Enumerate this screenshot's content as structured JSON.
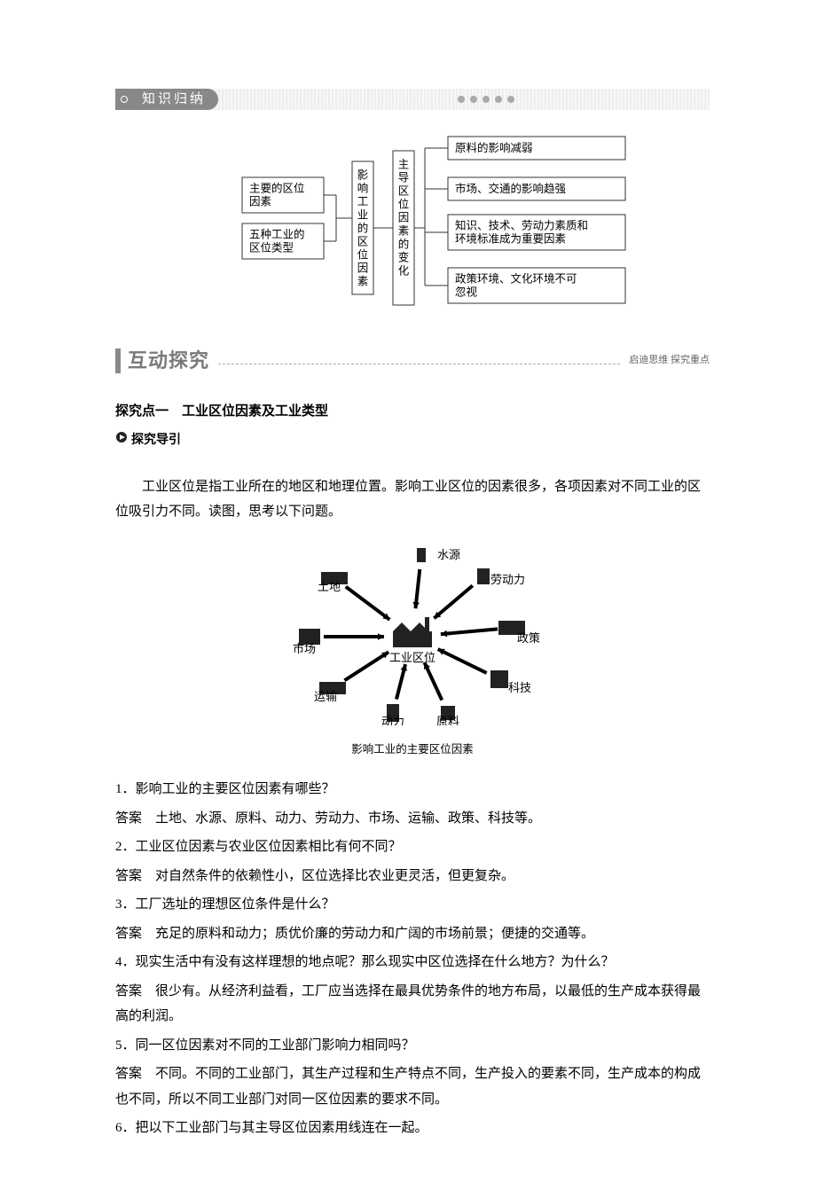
{
  "header": {
    "label": "知识归纳"
  },
  "diagram": {
    "left_nodes": [
      "主要的区位\n因素",
      "五种工业的\n区位类型"
    ],
    "mid_label": "影响工业的区位因素",
    "mid2_label": "主导区位因素的变化",
    "right_nodes": [
      "原料的影响减弱",
      "市场、交通的影响趋强",
      "知识、技术、劳动力素质和\n环境标准成为重要因素",
      "政策环境、文化环境不可\n忽视"
    ],
    "font_size": 12.5,
    "border_color": "#333"
  },
  "section": {
    "title": "互动探究",
    "note": "启迪思维  探究重点"
  },
  "topic": {
    "title": "探究点一　工业区位因素及工业类型",
    "guide": "探究导引"
  },
  "intro": "工业区位是指工业所在的地区和地理位置。影响工业区位的因素很多，各项因素对不同工业的区位吸引力不同。读图，思考以下问题。",
  "factor_figure": {
    "center": "工业区位",
    "labels": [
      "水源",
      "劳动力",
      "政策",
      "科技",
      "原料",
      "动力",
      "运输",
      "市场",
      "土地"
    ],
    "caption": "影响工业的主要区位因素"
  },
  "qa": [
    {
      "q": "1．影响工业的主要区位因素有哪些？",
      "a": "土地、水源、原料、动力、劳动力、市场、运输、政策、科技等。"
    },
    {
      "q": "2．工业区位因素与农业区位因素相比有何不同？",
      "a": "对自然条件的依赖性小，区位选择比农业更灵活，但更复杂。"
    },
    {
      "q": "3．工厂选址的理想区位条件是什么？",
      "a": "充足的原料和动力；质优价廉的劳动力和广阔的市场前景；便捷的交通等。"
    },
    {
      "q": "4．现实生活中有没有这样理想的地点呢？那么现实中区位选择在什么地方？为什么？",
      "a": "很少有。从经济利益看，工厂应当选择在最具优势条件的地方布局，以最低的生产成本获得最高的利润。"
    },
    {
      "q": "5．同一区位因素对不同的工业部门影响力相同吗？",
      "a": "不同。不同的工业部门，其生产过程和生产特点不同，生产投入的要素不同，生产成本的构成也不同，所以不同工业部门对同一区位因素的要求不同。"
    },
    {
      "q": "6．把以下工业部门与其主导区位因素用线连在一起。",
      "a": null
    }
  ],
  "answer_label": "答案"
}
